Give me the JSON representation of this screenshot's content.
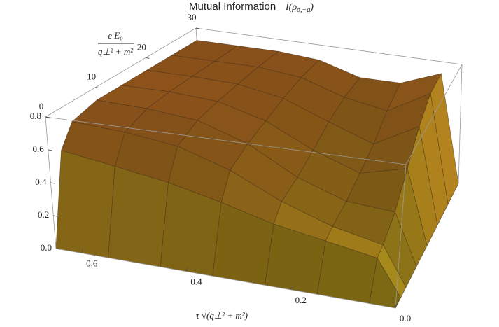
{
  "chart_data": {
    "type": "surface",
    "title": "Mutual Information",
    "title_math": [
      "I(ρ",
      "σ,−q",
      ")"
    ],
    "x_label": "τ √(q⊥² + m²)",
    "y_label": {
      "numerator": "e E₀",
      "denominator": "q⊥² + m²"
    },
    "x": [
      0.65,
      0.55,
      0.45,
      0.35,
      0.25,
      0.15,
      0.05,
      0
    ],
    "y": [
      0,
      2.5,
      5,
      10,
      15,
      20,
      25,
      30
    ],
    "z": [
      [
        0,
        0.55,
        0.68,
        0.72,
        0.72,
        0.72,
        0.72,
        0.72
      ],
      [
        0,
        0.5,
        0.66,
        0.71,
        0.72,
        0.72,
        0.72,
        0.72
      ],
      [
        0,
        0.45,
        0.62,
        0.68,
        0.7,
        0.71,
        0.72,
        0.72
      ],
      [
        0,
        0.38,
        0.52,
        0.58,
        0.62,
        0.66,
        0.69,
        0.7
      ],
      [
        0,
        0.3,
        0.38,
        0.42,
        0.48,
        0.55,
        0.6,
        0.62
      ],
      [
        0,
        0.25,
        0.28,
        0.32,
        0.38,
        0.45,
        0.55,
        0.62
      ],
      [
        0,
        0.2,
        0.22,
        0.3,
        0.45,
        0.6,
        0.7,
        0.72
      ],
      [
        0,
        0,
        0,
        0,
        0,
        0,
        0,
        0
      ]
    ],
    "xlim": [
      0,
      0.65
    ],
    "ylim": [
      0,
      30
    ],
    "zlim": [
      0,
      0.8
    ],
    "xticks": [
      0.6,
      0.4,
      0.2,
      {
        "value": 0,
        "label": "0.0"
      }
    ],
    "yticks": [
      0,
      10,
      20,
      30
    ],
    "zticks": [
      {
        "value": 0,
        "label": "0.0"
      },
      0.2,
      0.4,
      0.6,
      0.8
    ],
    "mesh": true
  }
}
